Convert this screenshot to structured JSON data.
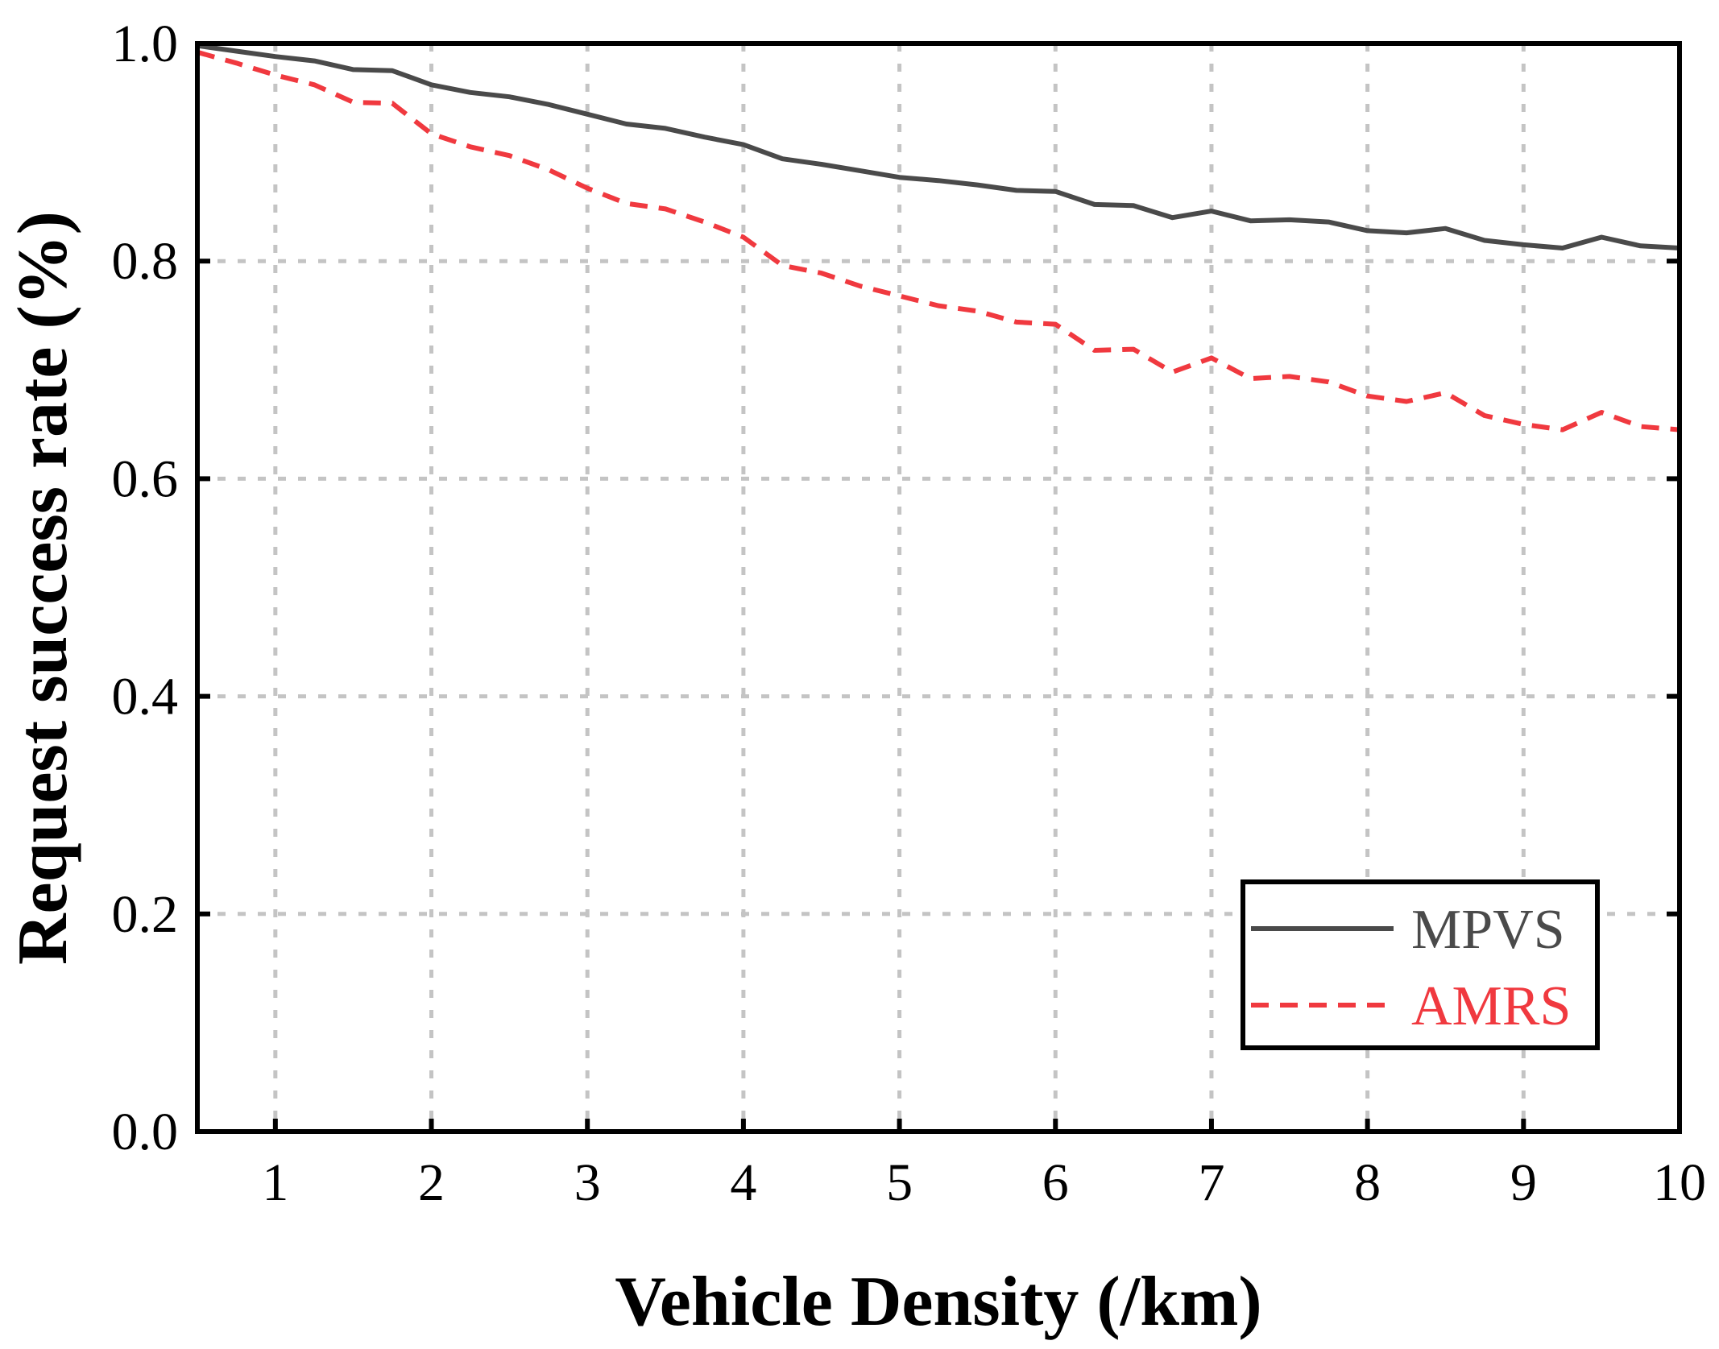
{
  "chart_data": {
    "type": "line",
    "title": "",
    "xlabel": "Vehicle Density (/km)",
    "ylabel": "Request success rate (%)",
    "xlim": [
      0.5,
      10
    ],
    "ylim": [
      0,
      1.0
    ],
    "xticks": [
      1,
      2,
      3,
      4,
      5,
      6,
      7,
      8,
      9,
      10
    ],
    "xtick_labels": [
      "1",
      "2",
      "3",
      "4",
      "5",
      "6",
      "7",
      "8",
      "9",
      "10"
    ],
    "yticks": [
      0,
      0.2,
      0.4,
      0.6,
      0.8,
      1.0
    ],
    "ytick_labels": [
      "0.0",
      "0.2",
      "0.4",
      "0.6",
      "0.8",
      "1.0"
    ],
    "grid": true,
    "legend_position": "bottom-right",
    "series": [
      {
        "name": "MPVS",
        "color": "#4a4a4a",
        "dash": "solid",
        "x": [
          0.5,
          0.75,
          1.0,
          1.25,
          1.5,
          1.75,
          2.0,
          2.25,
          2.5,
          2.75,
          3.0,
          3.25,
          3.5,
          3.75,
          4.0,
          4.25,
          4.5,
          4.75,
          5.0,
          5.25,
          5.5,
          5.75,
          6.0,
          6.25,
          6.5,
          6.75,
          7.0,
          7.25,
          7.5,
          7.75,
          8.0,
          8.25,
          8.5,
          8.75,
          9.0,
          9.25,
          9.5,
          9.75,
          10.0
        ],
        "y": [
          0.998,
          0.993,
          0.988,
          0.984,
          0.976,
          0.975,
          0.962,
          0.955,
          0.951,
          0.944,
          0.935,
          0.926,
          0.922,
          0.914,
          0.907,
          0.894,
          0.889,
          0.883,
          0.877,
          0.874,
          0.87,
          0.865,
          0.864,
          0.852,
          0.851,
          0.84,
          0.846,
          0.837,
          0.838,
          0.836,
          0.828,
          0.826,
          0.83,
          0.819,
          0.815,
          0.812,
          0.822,
          0.814,
          0.812
        ]
      },
      {
        "name": "AMRS",
        "color": "#f0393f",
        "dash": "dashed",
        "x": [
          0.5,
          0.75,
          1.0,
          1.25,
          1.5,
          1.75,
          2.0,
          2.25,
          2.5,
          2.75,
          3.0,
          3.25,
          3.5,
          3.75,
          4.0,
          4.25,
          4.5,
          4.75,
          5.0,
          5.25,
          5.5,
          5.75,
          6.0,
          6.25,
          6.5,
          6.75,
          7.0,
          7.25,
          7.5,
          7.75,
          8.0,
          8.25,
          8.5,
          8.75,
          9.0,
          9.25,
          9.5,
          9.75,
          10.0
        ],
        "y": [
          0.992,
          0.982,
          0.971,
          0.962,
          0.946,
          0.945,
          0.917,
          0.905,
          0.897,
          0.884,
          0.867,
          0.853,
          0.848,
          0.836,
          0.822,
          0.796,
          0.789,
          0.777,
          0.768,
          0.759,
          0.754,
          0.744,
          0.742,
          0.718,
          0.719,
          0.698,
          0.711,
          0.692,
          0.694,
          0.689,
          0.676,
          0.671,
          0.679,
          0.658,
          0.65,
          0.645,
          0.661,
          0.648,
          0.645
        ]
      }
    ]
  }
}
